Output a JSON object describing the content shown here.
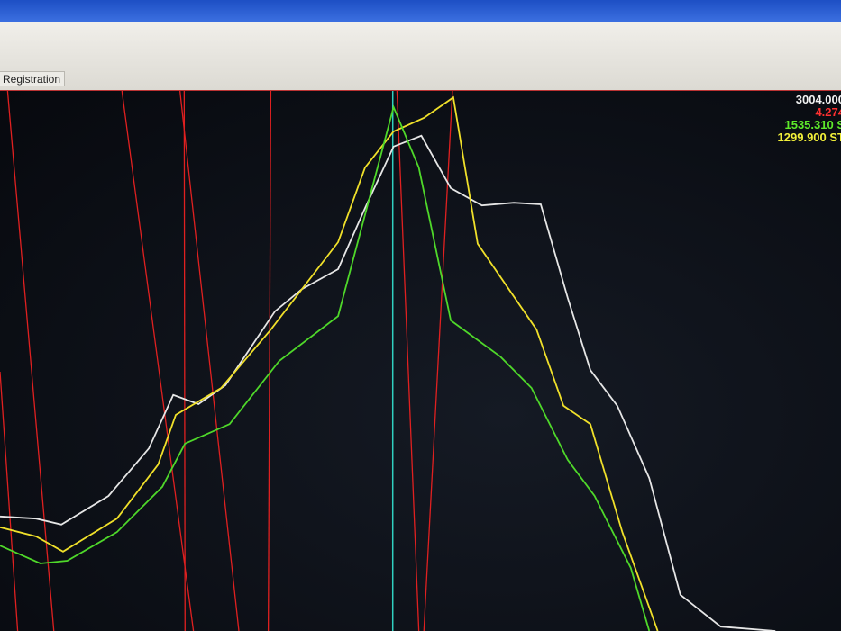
{
  "window": {
    "tab_label": "Registration"
  },
  "readouts": [
    {
      "text": "3004.000",
      "color": "#f2f2f2"
    },
    {
      "text": "4.274",
      "color": "#ff3030"
    },
    {
      "text": "1535.310 S",
      "color": "#5eea2a"
    },
    {
      "text": "1299.900 ST",
      "color": "#f2f03a"
    }
  ],
  "chart_data": {
    "type": "line",
    "title": "",
    "xlabel": "",
    "ylabel": "",
    "xlim": [
      0,
      100
    ],
    "ylim": [
      0,
      100
    ],
    "grid": false,
    "cursor_x": 46.7,
    "series": [
      {
        "color": "#e6e6e6",
        "points": [
          [
            0,
            21.2
          ],
          [
            4.3,
            20.8
          ],
          [
            7.3,
            19.7
          ],
          [
            12.9,
            25
          ],
          [
            17.7,
            33.8
          ],
          [
            20.6,
            43.7
          ],
          [
            23.6,
            42
          ],
          [
            26.8,
            45.5
          ],
          [
            32.7,
            59.2
          ],
          [
            35.9,
            63.3
          ],
          [
            40.2,
            67
          ],
          [
            43.4,
            78.3
          ],
          [
            46.8,
            89.7
          ],
          [
            50.1,
            91.7
          ],
          [
            53.6,
            82
          ],
          [
            57.3,
            78.8
          ],
          [
            61.1,
            79.3
          ],
          [
            64.3,
            79
          ],
          [
            67.5,
            61.7
          ],
          [
            70.2,
            48.3
          ],
          [
            73.4,
            41.7
          ],
          [
            77.2,
            28.3
          ],
          [
            80.9,
            6.7
          ],
          [
            85.7,
            0.8
          ],
          [
            92.2,
            0
          ]
        ]
      },
      {
        "color": "#f0e02a",
        "points": [
          [
            0,
            19.2
          ],
          [
            4.3,
            17.5
          ],
          [
            7.5,
            14.7
          ],
          [
            13.9,
            20.8
          ],
          [
            18.8,
            30.8
          ],
          [
            20.9,
            40
          ],
          [
            26.3,
            45
          ],
          [
            32.2,
            55.8
          ],
          [
            40.2,
            72
          ],
          [
            43.4,
            85.8
          ],
          [
            46.8,
            92.5
          ],
          [
            50.4,
            95
          ],
          [
            53.9,
            98.8
          ],
          [
            56.8,
            71.7
          ],
          [
            63.8,
            55.8
          ],
          [
            67,
            41.7
          ],
          [
            70.2,
            38.3
          ],
          [
            74,
            18.3
          ],
          [
            78.2,
            0
          ]
        ]
      },
      {
        "color": "#4fd82a",
        "points": [
          [
            0,
            15.8
          ],
          [
            4.8,
            12.5
          ],
          [
            8,
            13
          ],
          [
            13.9,
            18.3
          ],
          [
            19.3,
            26.7
          ],
          [
            22,
            34.7
          ],
          [
            27.3,
            38.3
          ],
          [
            33.2,
            50
          ],
          [
            40.2,
            58.3
          ],
          [
            46.8,
            97
          ],
          [
            49.8,
            85.8
          ],
          [
            53.6,
            57.5
          ],
          [
            59.5,
            50.8
          ],
          [
            63.2,
            45
          ],
          [
            67.5,
            31.7
          ],
          [
            70.7,
            25
          ],
          [
            75,
            11.7
          ],
          [
            77.2,
            0
          ]
        ]
      }
    ],
    "marker_lines": [
      [
        0.9,
        100,
        6.4,
        0
      ],
      [
        0,
        48,
        2.1,
        0
      ],
      [
        14.5,
        100,
        23,
        0
      ],
      [
        21.4,
        100,
        28.4,
        0
      ],
      [
        21.9,
        100,
        22,
        0
      ],
      [
        32.2,
        100,
        31.9,
        0
      ],
      [
        47.2,
        100,
        49.8,
        0
      ],
      [
        53.8,
        100,
        50.4,
        0
      ]
    ],
    "colors": {
      "markers": "#e02020",
      "cursor": "#30d0c0"
    }
  }
}
